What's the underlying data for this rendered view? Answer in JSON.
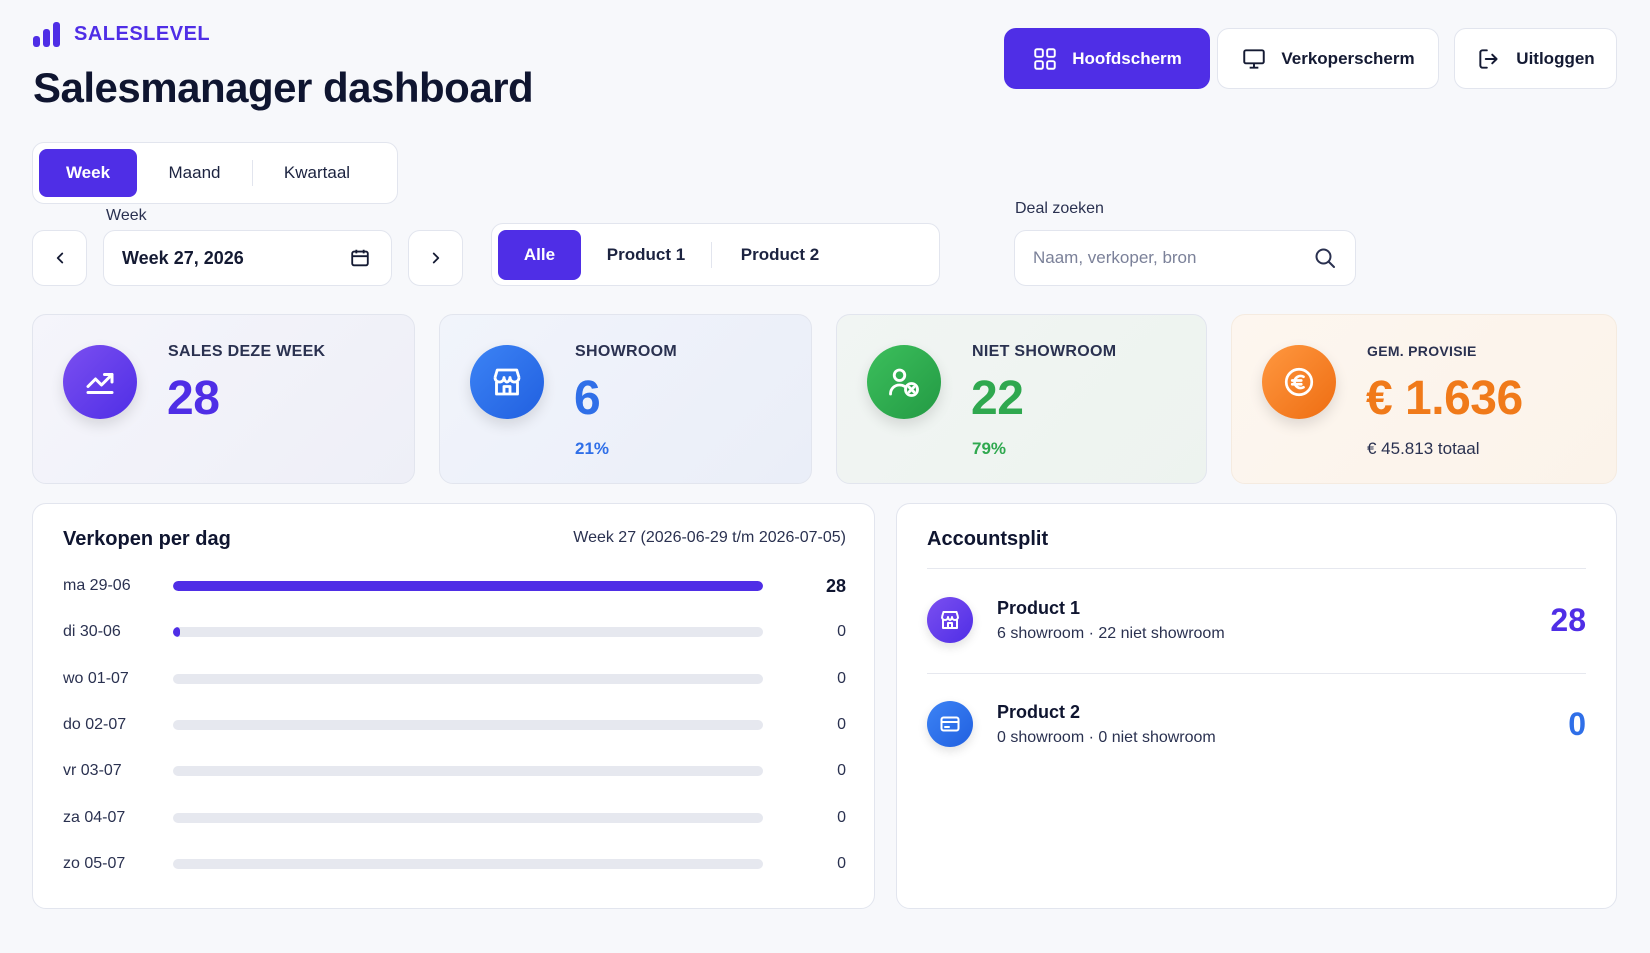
{
  "brand": {
    "name": "SALESLEVEL"
  },
  "page_title": "Salesmanager dashboard",
  "top_nav": {
    "home": "Hoofdscherm",
    "seller": "Verkoperscherm",
    "logout": "Uitloggen"
  },
  "period_tabs": [
    "Week",
    "Maand",
    "Kwartaal"
  ],
  "period_active": "Week",
  "week_picker": {
    "label": "Week",
    "value": "Week 27, 2026"
  },
  "product_filter": {
    "items": [
      "Alle",
      "Product 1",
      "Product 2"
    ],
    "active": "Alle"
  },
  "search": {
    "label": "Deal zoeken",
    "placeholder": "Naam, verkoper, bron",
    "value": ""
  },
  "kpis": {
    "sales": {
      "label": "SALES DEZE WEEK",
      "value": "28"
    },
    "showroom": {
      "label": "SHOWROOM",
      "value": "6",
      "sub": "21%"
    },
    "niet_showroom": {
      "label": "NIET SHOWROOM",
      "value": "22",
      "sub": "79%"
    },
    "provisie": {
      "label": "GEM. PROVISIE",
      "value": "€ 1.636",
      "sub": "€ 45.813 totaal"
    }
  },
  "sales_per_day": {
    "title": "Verkopen per dag",
    "range": "Week 27 (2026-06-29 t/m 2026-07-05)",
    "max": 28,
    "rows": [
      {
        "day": "ma 29-06",
        "value": 28
      },
      {
        "day": "di 30-06",
        "value": 0
      },
      {
        "day": "wo 01-07",
        "value": 0
      },
      {
        "day": "do 02-07",
        "value": 0
      },
      {
        "day": "vr 03-07",
        "value": 0
      },
      {
        "day": "za 04-07",
        "value": 0
      },
      {
        "day": "zo 05-07",
        "value": 0
      }
    ]
  },
  "accountsplit": {
    "title": "Accountsplit",
    "items": [
      {
        "name": "Product 1",
        "sub": "6 showroom · 22 niet showroom",
        "value": "28"
      },
      {
        "name": "Product 2",
        "sub": "0 showroom · 0 niet showroom",
        "value": "0"
      }
    ]
  },
  "colors": {
    "accent": "#4f2ee6",
    "blue": "#2f6fe8",
    "green": "#2fa84f",
    "orange": "#f07a1a"
  }
}
